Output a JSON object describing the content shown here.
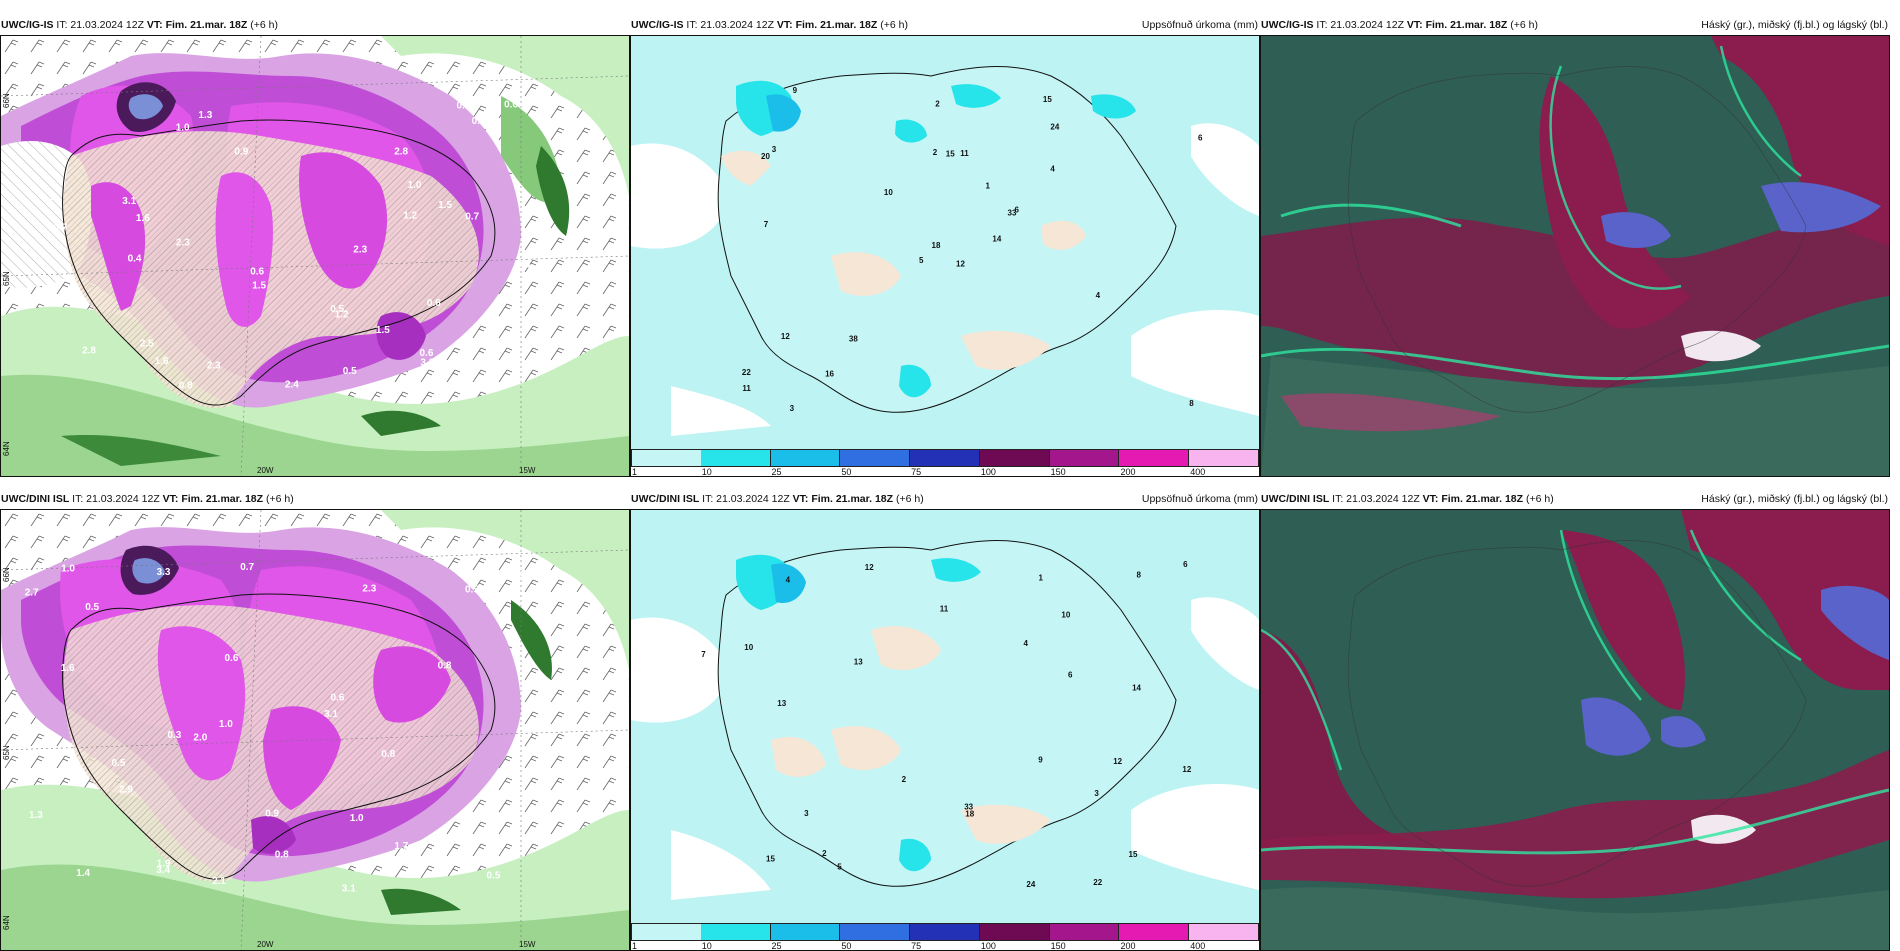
{
  "rows": [
    {
      "panels": [
        {
          "kind": "precip",
          "header": {
            "model": "UWC/IG-IS",
            "it": "IT: 21.03.2024 12Z",
            "vt_label": "VT:",
            "vt": "Fim. 21.mar. 18Z",
            "lead": "(+6 h)",
            "right": ""
          }
        },
        {
          "kind": "accum",
          "header": {
            "model": "UWC/IG-IS",
            "it": "IT: 21.03.2024 12Z",
            "vt_label": "VT:",
            "vt": "Fim. 21.mar. 18Z",
            "lead": "(+6 h)",
            "right": "Uppsöfnuð úrkoma (mm)"
          }
        },
        {
          "kind": "cloud",
          "header": {
            "model": "UWC/IG-IS",
            "it": "IT: 21.03.2024 12Z",
            "vt_label": "VT:",
            "vt": "Fim. 21.mar. 18Z",
            "lead": "(+6 h)",
            "right": "Háský (gr.), miðský (fj.bl.) og lágský (bl.)"
          }
        }
      ]
    },
    {
      "panels": [
        {
          "kind": "precip",
          "header": {
            "model": "UWC/DINI ISL",
            "it": "IT: 21.03.2024 12Z",
            "vt_label": "VT:",
            "vt": "Fim. 21.mar. 18Z",
            "lead": "(+6 h)",
            "right": ""
          }
        },
        {
          "kind": "accum",
          "header": {
            "model": "UWC/DINI ISL",
            "it": "IT: 21.03.2024 12Z",
            "vt_label": "VT:",
            "vt": "Fim. 21.mar. 18Z",
            "lead": "(+6 h)",
            "right": "Uppsöfnuð úrkoma (mm)"
          }
        },
        {
          "kind": "cloud",
          "header": {
            "model": "UWC/DINI ISL",
            "it": "IT: 21.03.2024 12Z",
            "vt_label": "VT:",
            "vt": "Fim. 21.mar. 18Z",
            "lead": "(+6 h)",
            "right": "Háský (gr.), miðský (fj.bl.) og lágský (bl.)"
          }
        }
      ]
    }
  ],
  "axis_labels": {
    "lon_20w": "20W",
    "lon_15w": "15W",
    "lat_66n": "66N",
    "lat_65n": "65N",
    "lat_64n": "64N"
  },
  "colorbar": {
    "ticks": [
      "1",
      "10",
      "25",
      "50",
      "75",
      "100",
      "150",
      "200",
      "400"
    ],
    "colors": [
      "#c5f5f5",
      "#27e3ea",
      "#1bbee8",
      "#2f6fe2",
      "#2231b5",
      "#6d0a53",
      "#a3168c",
      "#e51ab3",
      "#f7b4ef"
    ]
  },
  "precip_values_top": [
    "1.2",
    "1.0",
    "2.5",
    "3.1",
    "1.5",
    "0.5",
    "0.6",
    "2.3",
    "1.5",
    "1.6",
    "2.8",
    "0.7",
    "0.6",
    "0.5",
    "1.2",
    "0.6",
    "0.7",
    "0.8",
    "0.6",
    "0.7",
    "0.6",
    "1.2",
    "0.8",
    "3.1",
    "2.3",
    "1.0",
    "0.4",
    "1.6",
    "2.4",
    "0.9",
    "1.5",
    "0.6",
    "2.8",
    "2.3",
    "1.3"
  ],
  "precip_values_bot": [
    "2.1",
    "3.1",
    "1.9",
    "1.7",
    "3.3",
    "0.5",
    "0.3",
    "0.5",
    "0.7",
    "0.6",
    "0.5",
    "0.8",
    "1.0",
    "0.9",
    "2.3",
    "3.1",
    "1.6",
    "3.4",
    "2.0",
    "2.7",
    "1.0",
    "0.5",
    "0.6",
    "1.4",
    "0.8",
    "0.5",
    "1.3",
    "2.9",
    "1.0",
    "0.8"
  ],
  "accum_values_top": [
    "12",
    "20",
    "18",
    "22",
    "33",
    "38",
    "15",
    "11",
    "24",
    "14",
    "9",
    "8",
    "7",
    "6",
    "5",
    "4",
    "3",
    "2",
    "1",
    "12",
    "10",
    "11",
    "16",
    "15",
    "6",
    "4",
    "3",
    "2"
  ],
  "accum_values_bot": [
    "12",
    "22",
    "18",
    "15",
    "33",
    "13",
    "12",
    "10",
    "24",
    "14",
    "9",
    "8",
    "7",
    "6",
    "5",
    "4",
    "3",
    "2",
    "1",
    "11",
    "10",
    "12",
    "15",
    "13",
    "6",
    "4",
    "3",
    "2"
  ]
}
